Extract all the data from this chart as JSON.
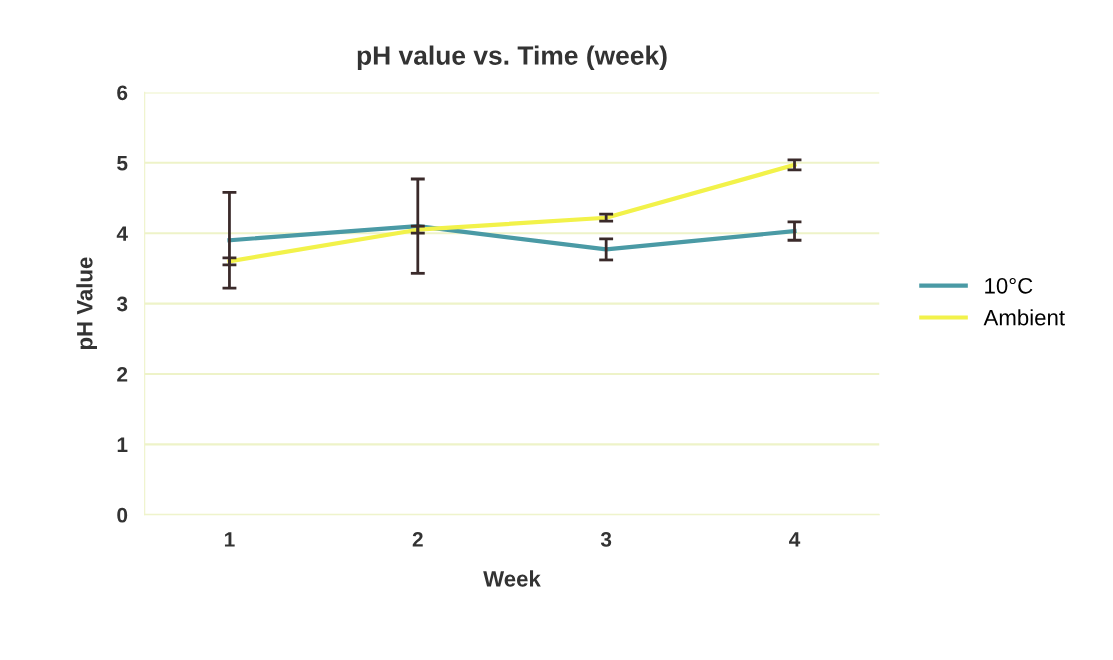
{
  "chart_data": {
    "type": "line",
    "title": "pH value vs. Time (week)",
    "xlabel": "Week",
    "ylabel": "pH Value",
    "categories": [
      "1",
      "2",
      "3",
      "4"
    ],
    "series": [
      {
        "name": "10°C",
        "color": "#4a9aa5",
        "values": [
          3.9,
          4.1,
          3.77,
          4.03
        ],
        "errors": [
          0.68,
          0.67,
          0.15,
          0.13
        ]
      },
      {
        "name": "Ambient",
        "color": "#f2f24a",
        "values": [
          3.6,
          4.05,
          4.22,
          4.97
        ],
        "errors": [
          0.05,
          0.05,
          0.05,
          0.07
        ]
      }
    ],
    "ylim": [
      0,
      6
    ],
    "yticks": [
      0,
      1,
      2,
      3,
      4,
      5,
      6
    ],
    "grid": "y",
    "legend": "right",
    "marker": "none",
    "line_style": "solid"
  }
}
